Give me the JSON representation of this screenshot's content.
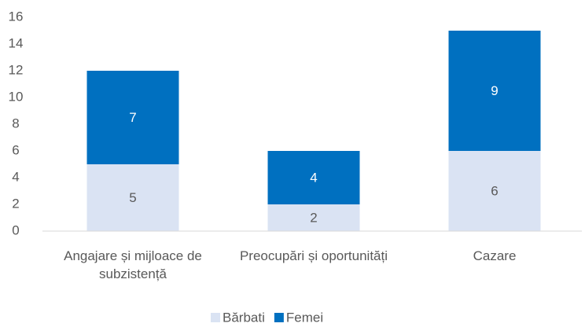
{
  "chart_data": {
    "type": "stacked_bar",
    "categories": [
      "Angajare și mijloace de subzistență",
      "Preocupări și oportunități",
      "Cazare"
    ],
    "series": [
      {
        "name": "Bărbati",
        "color": "#dae3f3",
        "values": [
          5,
          2,
          6
        ]
      },
      {
        "name": "Femei",
        "color": "#0070c0",
        "values": [
          7,
          4,
          9
        ]
      }
    ],
    "ylim": [
      0,
      16
    ],
    "yticks": [
      0,
      2,
      4,
      6,
      8,
      10,
      12,
      14,
      16
    ],
    "grid": false,
    "legend": "bottom"
  }
}
